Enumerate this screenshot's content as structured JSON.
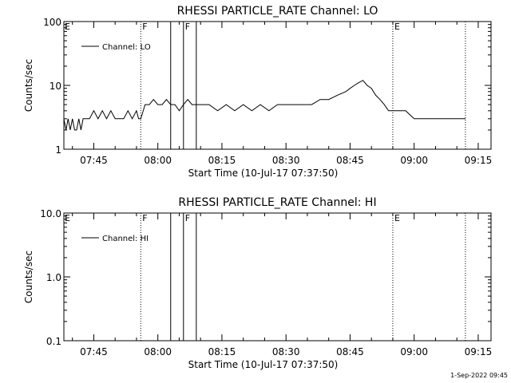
{
  "footer_timestamp": "1-Sep-2022 09:45",
  "chart_data": [
    {
      "type": "line",
      "title": "RHESSI PARTICLE_RATE Channel: LO",
      "xlabel": "Start Time (10-Jul-17 07:37:50)",
      "ylabel": "Counts/sec",
      "yscale": "log",
      "ylim": [
        1,
        100
      ],
      "ytick_labels": [
        "1",
        "10",
        "100"
      ],
      "xlim": [
        "07:38",
        "09:18"
      ],
      "xtick_labels": [
        "07:45",
        "08:00",
        "08:15",
        "08:30",
        "08:45",
        "09:00",
        "09:15"
      ],
      "legend": "top-left",
      "series": [
        {
          "name": "Channel: LO",
          "color": "#000000",
          "x": [
            "07:38",
            "07:38:30",
            "07:39",
            "07:39:30",
            "07:40",
            "07:40:30",
            "07:41",
            "07:41:30",
            "07:42",
            "07:42:30",
            "07:43",
            "07:44",
            "07:45",
            "07:46",
            "07:47",
            "07:48",
            "07:49",
            "07:50",
            "07:51",
            "07:52",
            "07:53",
            "07:54",
            "07:55",
            "07:55:30",
            "07:56",
            "07:57",
            "07:58",
            "07:59",
            "08:00",
            "08:01",
            "08:02",
            "08:03",
            "08:04",
            "08:05",
            "08:06",
            "08:07",
            "08:08",
            "08:09",
            "08:10",
            "08:12",
            "08:14",
            "08:16",
            "08:18",
            "08:20",
            "08:22",
            "08:24",
            "08:26",
            "08:28",
            "08:30",
            "08:32",
            "08:34",
            "08:36",
            "08:38",
            "08:40",
            "08:42",
            "08:44",
            "08:45",
            "08:46",
            "08:47",
            "08:48",
            "08:49",
            "08:50",
            "08:51",
            "08:52",
            "08:53",
            "08:54",
            "08:55",
            "08:56",
            "08:58",
            "09:00",
            "09:02",
            "09:04",
            "09:06",
            "09:08",
            "09:10",
            "09:12"
          ],
          "values": [
            3,
            2,
            3,
            2,
            3,
            2,
            2,
            3,
            2,
            3,
            3,
            3,
            4,
            3,
            4,
            3,
            4,
            3,
            3,
            3,
            4,
            3,
            4,
            3,
            3,
            5,
            5,
            6,
            5,
            5,
            6,
            5,
            5,
            4,
            5,
            6,
            5,
            5,
            5,
            5,
            4,
            5,
            4,
            5,
            4,
            5,
            4,
            5,
            5,
            5,
            5,
            5,
            6,
            6,
            7,
            8,
            9,
            10,
            11,
            12,
            10,
            9,
            7,
            6,
            5,
            4,
            4,
            4,
            4,
            3,
            3,
            3,
            3,
            3,
            3,
            3
          ]
        }
      ],
      "vertical_markers": [
        {
          "time": "07:56",
          "label": "F",
          "style": "dotted"
        },
        {
          "time": "08:03",
          "label": "",
          "style": "solid"
        },
        {
          "time": "08:06",
          "label": "F",
          "style": "solid"
        },
        {
          "time": "08:09",
          "label": "",
          "style": "solid"
        },
        {
          "time": "08:55",
          "label": "E",
          "style": "dotted"
        },
        {
          "time": "09:12",
          "label": "",
          "style": "dotted"
        }
      ],
      "edge_label_left": "E"
    },
    {
      "type": "line",
      "title": "RHESSI PARTICLE_RATE Channel: HI",
      "xlabel": "Start Time (10-Jul-17 07:37:50)",
      "ylabel": "Counts/sec",
      "yscale": "log",
      "ylim": [
        0.1,
        10
      ],
      "ytick_labels": [
        "0.1",
        "1.0",
        "10.0"
      ],
      "xlim": [
        "07:38",
        "09:18"
      ],
      "xtick_labels": [
        "07:45",
        "08:00",
        "08:15",
        "08:30",
        "08:45",
        "09:00",
        "09:15"
      ],
      "legend": "top-left",
      "series": [
        {
          "name": "Channel: HI",
          "color": "#000000",
          "x": [],
          "values": []
        }
      ],
      "vertical_markers": [
        {
          "time": "07:56",
          "label": "F",
          "style": "dotted"
        },
        {
          "time": "08:03",
          "label": "",
          "style": "solid"
        },
        {
          "time": "08:06",
          "label": "F",
          "style": "solid"
        },
        {
          "time": "08:09",
          "label": "",
          "style": "solid"
        },
        {
          "time": "08:55",
          "label": "E",
          "style": "dotted"
        },
        {
          "time": "09:12",
          "label": "",
          "style": "dotted"
        }
      ],
      "edge_label_left": "E"
    }
  ]
}
